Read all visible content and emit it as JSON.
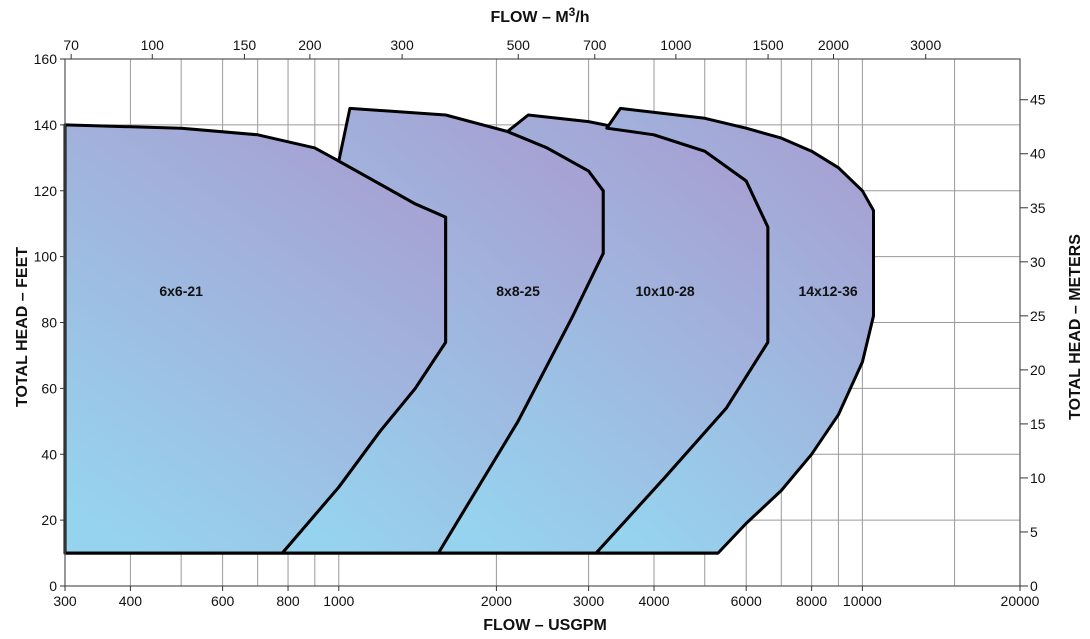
{
  "chart_data": {
    "type": "area",
    "title": "",
    "x_bottom": {
      "label": "FLOW – USGPM",
      "scale": "log",
      "range": [
        300,
        20000
      ],
      "ticks": [
        300,
        400,
        600,
        800,
        1000,
        2000,
        3000,
        4000,
        6000,
        8000,
        10000,
        20000
      ],
      "tick_labels": [
        "300",
        "400",
        "600",
        "800",
        "1000",
        "2000",
        "3000",
        "4000",
        "6000",
        "8000",
        "10000",
        "20000"
      ],
      "gridlines": [
        300,
        400,
        500,
        600,
        700,
        800,
        900,
        1000,
        2000,
        3000,
        4000,
        5000,
        6000,
        7000,
        8000,
        9000,
        10000,
        15000,
        20000
      ]
    },
    "x_top": {
      "label_prefix": "FLOW – M",
      "label_sup": "3",
      "label_suffix": "/h",
      "scale": "log",
      "ticks": [
        70,
        100,
        150,
        200,
        300,
        500,
        700,
        1000,
        1500,
        2000,
        3000
      ],
      "tick_labels": [
        "70",
        "100",
        "150",
        "200",
        "300",
        "500",
        "700",
        "1000",
        "1500",
        "2000",
        "3000"
      ]
    },
    "y_left": {
      "label": "TOTAL HEAD – FEET",
      "range": [
        0,
        160
      ],
      "ticks": [
        0,
        20,
        40,
        60,
        80,
        100,
        120,
        140,
        160
      ],
      "tick_labels": [
        "0",
        "20",
        "40",
        "60",
        "80",
        "100",
        "120",
        "140",
        "160"
      ]
    },
    "y_right": {
      "label": "TOTAL HEAD – METERS",
      "ticks": [
        0,
        5,
        10,
        15,
        20,
        25,
        30,
        35,
        40,
        45
      ],
      "tick_labels": [
        "0",
        "5",
        "10",
        "15",
        "20",
        "25",
        "30",
        "35",
        "40",
        "45"
      ]
    },
    "grid": true,
    "fill_colors": {
      "top": "#a79fd2",
      "bottom": "#96d3ee"
    },
    "series": [
      {
        "name": "6x6-21",
        "label_at": [
          500,
          88
        ],
        "outline": [
          [
            300,
            10
          ],
          [
            300,
            140
          ],
          [
            500,
            139
          ],
          [
            700,
            137
          ],
          [
            900,
            133
          ],
          [
            1000,
            129
          ],
          [
            1200,
            122
          ],
          [
            1400,
            116
          ],
          [
            1600,
            112
          ],
          [
            1600,
            74
          ],
          [
            1400,
            60
          ],
          [
            1200,
            47
          ],
          [
            1000,
            30
          ],
          [
            780,
            10
          ]
        ]
      },
      {
        "name": "8x8-25",
        "label_at": [
          2200,
          88
        ],
        "outline": [
          [
            1550,
            10
          ],
          [
            780,
            10
          ],
          [
            1000,
            30
          ],
          [
            1200,
            47
          ],
          [
            1400,
            60
          ],
          [
            1600,
            74
          ],
          [
            1600,
            112
          ],
          [
            1400,
            116
          ],
          [
            1200,
            122
          ],
          [
            1000,
            129
          ],
          [
            1050,
            145
          ],
          [
            1600,
            143
          ],
          [
            2100,
            138
          ],
          [
            2500,
            133
          ],
          [
            3000,
            126
          ],
          [
            3200,
            120
          ],
          [
            3200,
            101
          ],
          [
            2800,
            82
          ],
          [
            2200,
            50
          ],
          [
            1550,
            10
          ]
        ]
      },
      {
        "name": "10x10-28",
        "label_at": [
          4200,
          88
        ],
        "outline": [
          [
            3100,
            10
          ],
          [
            1550,
            10
          ],
          [
            2200,
            50
          ],
          [
            2800,
            82
          ],
          [
            3200,
            101
          ],
          [
            3200,
            120
          ],
          [
            3000,
            126
          ],
          [
            2500,
            133
          ],
          [
            2100,
            138
          ],
          [
            2300,
            143
          ],
          [
            3000,
            141
          ],
          [
            4000,
            137
          ],
          [
            5000,
            132
          ],
          [
            6000,
            123
          ],
          [
            6600,
            109
          ],
          [
            6600,
            74
          ],
          [
            5500,
            54
          ],
          [
            4200,
            33
          ],
          [
            3100,
            10
          ]
        ]
      },
      {
        "name": "14x12-36",
        "label_at": [
          8600,
          88
        ],
        "outline": [
          [
            5300,
            10
          ],
          [
            3100,
            10
          ],
          [
            4200,
            33
          ],
          [
            5500,
            54
          ],
          [
            6600,
            74
          ],
          [
            6600,
            109
          ],
          [
            6000,
            123
          ],
          [
            5000,
            132
          ],
          [
            4000,
            137
          ],
          [
            3250,
            139
          ],
          [
            3450,
            145
          ],
          [
            5000,
            142
          ],
          [
            6000,
            139
          ],
          [
            7000,
            136
          ],
          [
            8000,
            132
          ],
          [
            9000,
            127
          ],
          [
            10000,
            120
          ],
          [
            10500,
            114
          ],
          [
            10500,
            82
          ],
          [
            10000,
            68
          ],
          [
            9000,
            52
          ],
          [
            8000,
            40
          ],
          [
            7000,
            29
          ],
          [
            6000,
            19
          ],
          [
            5300,
            10
          ]
        ]
      }
    ]
  }
}
